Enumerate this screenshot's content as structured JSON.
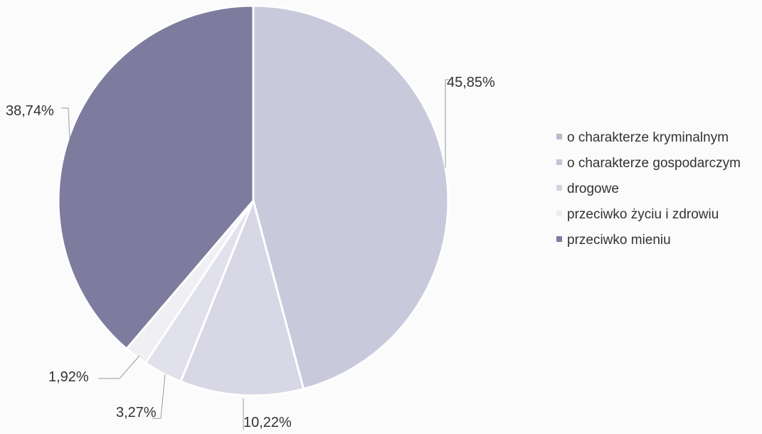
{
  "chart_data": {
    "type": "pie",
    "title": "",
    "categories": [
      "o charakterze kryminalnym",
      "o charakterze gospodarczym",
      "drogowe",
      "przeciwko życiu i zdrowiu",
      "przeciwko mieniu"
    ],
    "values": [
      45.85,
      10.22,
      3.27,
      1.92,
      38.74
    ],
    "data_labels": [
      "45,85%",
      "10,22%",
      "3,27%",
      "1,92%",
      "38,74%"
    ],
    "colors": [
      "#c9c9dc",
      "#d7d7e6",
      "#e1e1ec",
      "#efeff4",
      "#7e7c9e"
    ],
    "legend_position": "right",
    "start_angle_deg": 0,
    "direction": "clockwise"
  }
}
